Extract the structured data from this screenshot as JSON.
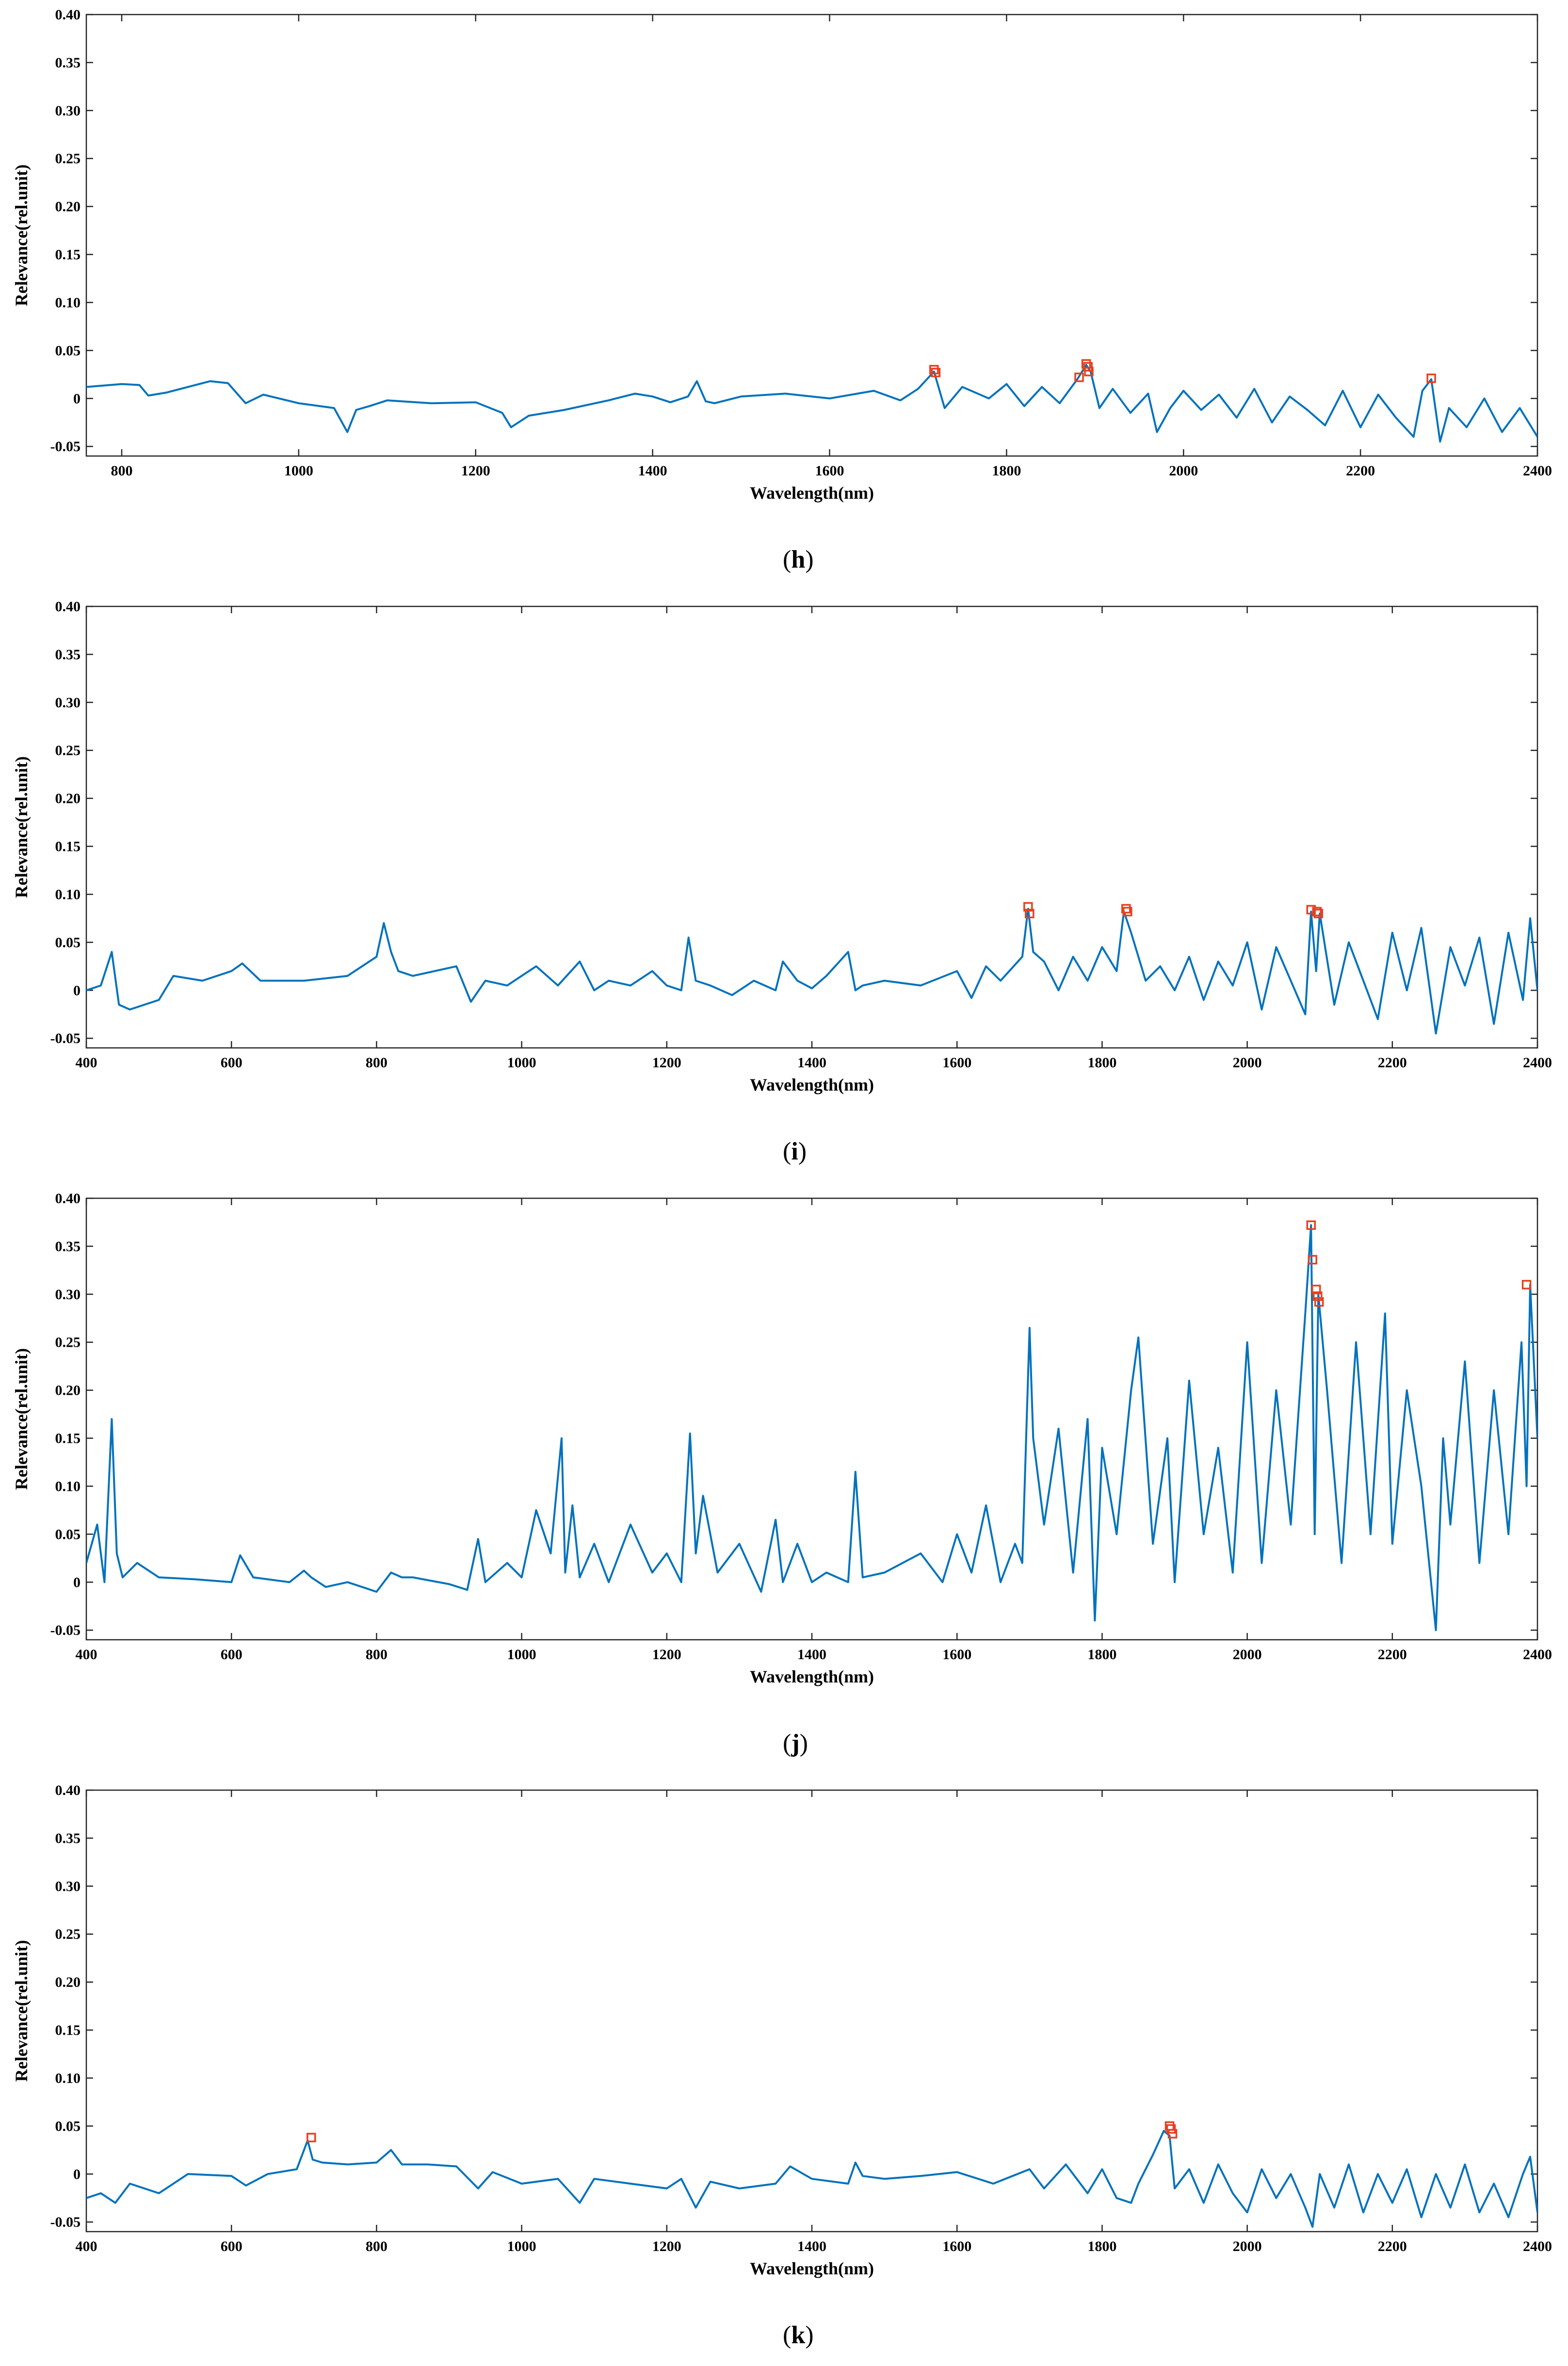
{
  "chart_data": [
    {
      "type": "line",
      "caption": "h",
      "xlabel": "Wavelength(nm)",
      "ylabel": "Relevance(rel.unit)",
      "xlim": [
        760,
        2400
      ],
      "ylim": [
        -0.06,
        0.4
      ],
      "xticks": [
        800,
        1000,
        1200,
        1400,
        1600,
        1800,
        2000,
        2200,
        2400
      ],
      "xtick_labels": [
        "800",
        "1000",
        "1200",
        "1400",
        "1600",
        "1800",
        "2000",
        "2200",
        "2400"
      ],
      "yticks": [
        0.4,
        0.35,
        0.3,
        0.25,
        0.2,
        0.15,
        0.1,
        0.05,
        0,
        -0.05
      ],
      "ytick_labels": [
        "0.40",
        "0.35",
        "0.30",
        "0.25",
        "0.20",
        "0.15",
        "0.10",
        "0.05",
        "0",
        "-0.05"
      ],
      "line_color": "#0072BD",
      "marker_color": "#E8401C",
      "series": [
        {
          "name": "relevance",
          "x": [
            760,
            800,
            820,
            830,
            850,
            900,
            920,
            940,
            960,
            1000,
            1040,
            1055,
            1065,
            1080,
            1100,
            1150,
            1200,
            1230,
            1240,
            1260,
            1300,
            1350,
            1380,
            1400,
            1420,
            1440,
            1450,
            1460,
            1470,
            1500,
            1550,
            1600,
            1650,
            1680,
            1700,
            1718,
            1730,
            1750,
            1780,
            1800,
            1820,
            1840,
            1860,
            1880,
            1890,
            1895,
            1905,
            1920,
            1940,
            1960,
            1970,
            1985,
            2000,
            2020,
            2040,
            2060,
            2080,
            2100,
            2120,
            2140,
            2160,
            2180,
            2200,
            2220,
            2240,
            2260,
            2270,
            2280,
            2290,
            2300,
            2320,
            2340,
            2360,
            2380,
            2400
          ],
          "y": [
            0.012,
            0.015,
            0.014,
            0.003,
            0.006,
            0.018,
            0.016,
            -0.005,
            0.004,
            -0.005,
            -0.01,
            -0.035,
            -0.012,
            -0.008,
            -0.002,
            -0.005,
            -0.004,
            -0.015,
            -0.03,
            -0.018,
            -0.012,
            -0.002,
            0.005,
            0.002,
            -0.004,
            0.002,
            0.018,
            -0.003,
            -0.005,
            0.002,
            0.005,
            0.0,
            0.008,
            -0.002,
            0.01,
            0.028,
            -0.01,
            0.012,
            0.0,
            0.015,
            -0.008,
            0.012,
            -0.005,
            0.02,
            0.035,
            0.028,
            -0.01,
            0.01,
            -0.015,
            0.005,
            -0.035,
            -0.01,
            0.008,
            -0.012,
            0.004,
            -0.02,
            0.01,
            -0.025,
            0.002,
            -0.012,
            -0.028,
            0.008,
            -0.03,
            0.004,
            -0.02,
            -0.04,
            0.008,
            0.02,
            -0.045,
            -0.01,
            -0.03,
            0.0,
            -0.035,
            -0.01,
            -0.04
          ]
        }
      ],
      "highlighted_points": {
        "x": [
          1718,
          1720,
          1882,
          1890,
          1892,
          1893,
          2280
        ],
        "y": [
          0.03,
          0.027,
          0.022,
          0.036,
          0.033,
          0.028,
          0.021
        ]
      }
    },
    {
      "type": "line",
      "caption": "i",
      "xlabel": "Wavelength(nm)",
      "ylabel": "Relevance(rel.unit)",
      "xlim": [
        400,
        2400
      ],
      "ylim": [
        -0.06,
        0.4
      ],
      "xticks": [
        400,
        600,
        800,
        1000,
        1200,
        1400,
        1600,
        1800,
        2000,
        2200,
        2400
      ],
      "xtick_labels": [
        "400",
        "600",
        "800",
        "1000",
        "1200",
        "1400",
        "1600",
        "1800",
        "2000",
        "2200",
        "2400"
      ],
      "yticks": [
        0.4,
        0.35,
        0.3,
        0.25,
        0.2,
        0.15,
        0.1,
        0.05,
        0,
        -0.05
      ],
      "ytick_labels": [
        "0.40",
        "0.35",
        "0.30",
        "0.25",
        "0.20",
        "0.15",
        "0.10",
        "0.05",
        "0",
        "-0.05"
      ],
      "line_color": "#0072BD",
      "marker_color": "#E8401C",
      "series": [
        {
          "name": "relevance",
          "x": [
            400,
            420,
            435,
            445,
            460,
            500,
            520,
            560,
            600,
            615,
            640,
            700,
            760,
            800,
            810,
            820,
            830,
            850,
            880,
            910,
            930,
            950,
            980,
            1000,
            1020,
            1050,
            1080,
            1100,
            1120,
            1150,
            1180,
            1200,
            1220,
            1230,
            1240,
            1260,
            1290,
            1320,
            1350,
            1360,
            1380,
            1400,
            1420,
            1450,
            1460,
            1470,
            1500,
            1550,
            1600,
            1620,
            1640,
            1660,
            1690,
            1698,
            1705,
            1720,
            1740,
            1760,
            1780,
            1800,
            1820,
            1830,
            1840,
            1860,
            1880,
            1900,
            1920,
            1940,
            1960,
            1980,
            2000,
            2020,
            2040,
            2060,
            2080,
            2088,
            2095,
            2100,
            2120,
            2140,
            2160,
            2180,
            2200,
            2220,
            2240,
            2260,
            2280,
            2300,
            2320,
            2340,
            2360,
            2380,
            2390,
            2400
          ],
          "y": [
            0.0,
            0.005,
            0.04,
            -0.015,
            -0.02,
            -0.01,
            0.015,
            0.01,
            0.02,
            0.028,
            0.01,
            0.01,
            0.015,
            0.035,
            0.07,
            0.04,
            0.02,
            0.015,
            0.02,
            0.025,
            -0.012,
            0.01,
            0.005,
            0.015,
            0.025,
            0.005,
            0.03,
            0.0,
            0.01,
            0.005,
            0.02,
            0.005,
            0.0,
            0.055,
            0.01,
            0.005,
            -0.005,
            0.01,
            0.0,
            0.03,
            0.01,
            0.002,
            0.015,
            0.04,
            0.0,
            0.005,
            0.01,
            0.005,
            0.02,
            -0.008,
            0.025,
            0.01,
            0.035,
            0.085,
            0.04,
            0.03,
            0.0,
            0.035,
            0.01,
            0.045,
            0.02,
            0.082,
            0.06,
            0.01,
            0.025,
            0.0,
            0.035,
            -0.01,
            0.03,
            0.005,
            0.05,
            -0.02,
            0.045,
            0.01,
            -0.025,
            0.082,
            0.02,
            0.08,
            -0.015,
            0.05,
            0.01,
            -0.03,
            0.06,
            0.0,
            0.065,
            -0.045,
            0.045,
            0.005,
            0.055,
            -0.035,
            0.06,
            -0.01,
            0.075,
            0.0
          ]
        }
      ],
      "highlighted_points": {
        "x": [
          1698,
          1700,
          1833,
          1835,
          2088,
          2096,
          2098
        ],
        "y": [
          0.087,
          0.08,
          0.085,
          0.082,
          0.084,
          0.082,
          0.08
        ]
      }
    },
    {
      "type": "line",
      "caption": "j",
      "xlabel": "Wavelength(nm)",
      "ylabel": "Relevance(rel.unit)",
      "xlim": [
        400,
        2400
      ],
      "ylim": [
        -0.06,
        0.4
      ],
      "xticks": [
        400,
        600,
        800,
        1000,
        1200,
        1400,
        1600,
        1800,
        2000,
        2200,
        2400
      ],
      "xtick_labels": [
        "400",
        "600",
        "800",
        "1000",
        "1200",
        "1400",
        "1600",
        "1800",
        "2000",
        "2200",
        "2400"
      ],
      "yticks": [
        0.4,
        0.35,
        0.3,
        0.25,
        0.2,
        0.15,
        0.1,
        0.05,
        0,
        -0.05
      ],
      "ytick_labels": [
        "0.40",
        "0.35",
        "0.30",
        "0.25",
        "0.20",
        "0.15",
        "0.10",
        "0.05",
        "0",
        "-0.05"
      ],
      "line_color": "#0072BD",
      "marker_color": "#E8401C",
      "series": [
        {
          "name": "relevance",
          "x": [
            400,
            415,
            425,
            435,
            442,
            450,
            470,
            500,
            550,
            600,
            612,
            630,
            680,
            700,
            710,
            730,
            760,
            800,
            820,
            835,
            850,
            900,
            925,
            940,
            950,
            980,
            1000,
            1020,
            1040,
            1055,
            1060,
            1070,
            1080,
            1100,
            1120,
            1150,
            1180,
            1200,
            1220,
            1232,
            1240,
            1250,
            1270,
            1300,
            1330,
            1350,
            1360,
            1380,
            1400,
            1420,
            1450,
            1460,
            1470,
            1500,
            1550,
            1580,
            1600,
            1620,
            1640,
            1660,
            1680,
            1690,
            1700,
            1705,
            1720,
            1740,
            1760,
            1780,
            1790,
            1800,
            1820,
            1840,
            1850,
            1870,
            1890,
            1900,
            1920,
            1940,
            1960,
            1980,
            2000,
            2020,
            2040,
            2060,
            2080,
            2088,
            2093,
            2098,
            2110,
            2130,
            2150,
            2170,
            2190,
            2200,
            2220,
            2240,
            2260,
            2270,
            2280,
            2300,
            2320,
            2340,
            2360,
            2378,
            2385,
            2390,
            2400
          ],
          "y": [
            0.02,
            0.06,
            0.0,
            0.17,
            0.03,
            0.005,
            0.02,
            0.005,
            0.003,
            0.0,
            0.028,
            0.005,
            0.0,
            0.012,
            0.005,
            -0.005,
            0.0,
            -0.01,
            0.01,
            0.005,
            0.005,
            -0.002,
            -0.008,
            0.045,
            0.0,
            0.02,
            0.005,
            0.075,
            0.03,
            0.15,
            0.01,
            0.08,
            0.005,
            0.04,
            0.0,
            0.06,
            0.01,
            0.03,
            0.0,
            0.155,
            0.03,
            0.09,
            0.01,
            0.04,
            -0.01,
            0.065,
            0.0,
            0.04,
            0.0,
            0.01,
            0.0,
            0.115,
            0.005,
            0.01,
            0.03,
            0.0,
            0.05,
            0.01,
            0.08,
            0.0,
            0.04,
            0.02,
            0.265,
            0.15,
            0.06,
            0.16,
            0.01,
            0.17,
            -0.04,
            0.14,
            0.05,
            0.2,
            0.255,
            0.04,
            0.15,
            0.0,
            0.21,
            0.05,
            0.14,
            0.01,
            0.25,
            0.02,
            0.2,
            0.06,
            0.28,
            0.372,
            0.05,
            0.3,
            0.2,
            0.02,
            0.25,
            0.05,
            0.28,
            0.04,
            0.2,
            0.1,
            -0.05,
            0.15,
            0.06,
            0.23,
            0.02,
            0.2,
            0.05,
            0.25,
            0.1,
            0.31,
            0.15
          ]
        }
      ],
      "highlighted_points": {
        "x": [
          2088,
          2090,
          2095,
          2097,
          2099,
          2385
        ],
        "y": [
          0.372,
          0.336,
          0.305,
          0.298,
          0.292,
          0.31
        ]
      }
    },
    {
      "type": "line",
      "caption": "k",
      "xlabel": "Wavelength(nm)",
      "ylabel": "Relevance(rel.unit)",
      "xlim": [
        400,
        2400
      ],
      "ylim": [
        -0.06,
        0.4
      ],
      "xticks": [
        400,
        600,
        800,
        1000,
        1200,
        1400,
        1600,
        1800,
        2000,
        2200,
        2400
      ],
      "xtick_labels": [
        "400",
        "600",
        "800",
        "1000",
        "1200",
        "1400",
        "1600",
        "1800",
        "2000",
        "2200",
        "2400"
      ],
      "yticks": [
        0.4,
        0.35,
        0.3,
        0.25,
        0.2,
        0.15,
        0.1,
        0.05,
        0,
        -0.05
      ],
      "ytick_labels": [
        "0.40",
        "0.35",
        "0.30",
        "0.25",
        "0.20",
        "0.15",
        "0.10",
        "0.05",
        "0",
        "-0.05"
      ],
      "line_color": "#0072BD",
      "marker_color": "#E8401C",
      "series": [
        {
          "name": "relevance",
          "x": [
            400,
            420,
            440,
            460,
            500,
            540,
            600,
            620,
            650,
            690,
            705,
            712,
            725,
            760,
            800,
            820,
            835,
            870,
            910,
            940,
            960,
            1000,
            1050,
            1080,
            1100,
            1150,
            1200,
            1220,
            1240,
            1260,
            1300,
            1350,
            1370,
            1400,
            1450,
            1460,
            1470,
            1500,
            1550,
            1600,
            1650,
            1700,
            1720,
            1750,
            1780,
            1800,
            1820,
            1840,
            1850,
            1870,
            1885,
            1893,
            1900,
            1920,
            1940,
            1960,
            1980,
            2000,
            2020,
            2040,
            2060,
            2080,
            2090,
            2100,
            2120,
            2140,
            2160,
            2180,
            2200,
            2220,
            2240,
            2260,
            2280,
            2300,
            2320,
            2340,
            2360,
            2380,
            2390,
            2400
          ],
          "y": [
            -0.025,
            -0.02,
            -0.03,
            -0.01,
            -0.02,
            0.0,
            -0.002,
            -0.012,
            0.0,
            0.005,
            0.035,
            0.015,
            0.012,
            0.01,
            0.012,
            0.025,
            0.01,
            0.01,
            0.008,
            -0.015,
            0.002,
            -0.01,
            -0.005,
            -0.03,
            -0.005,
            -0.01,
            -0.015,
            -0.005,
            -0.035,
            -0.008,
            -0.015,
            -0.01,
            0.008,
            -0.005,
            -0.01,
            0.012,
            -0.002,
            -0.005,
            -0.002,
            0.002,
            -0.01,
            0.005,
            -0.015,
            0.01,
            -0.02,
            0.005,
            -0.025,
            -0.03,
            -0.01,
            0.02,
            0.045,
            0.04,
            -0.015,
            0.005,
            -0.03,
            0.01,
            -0.02,
            -0.04,
            0.005,
            -0.025,
            0.0,
            -0.035,
            -0.055,
            0.0,
            -0.035,
            0.01,
            -0.04,
            0.0,
            -0.03,
            0.005,
            -0.045,
            0.0,
            -0.035,
            0.01,
            -0.04,
            -0.01,
            -0.045,
            0.0,
            0.018,
            -0.04
          ]
        }
      ],
      "highlighted_points": {
        "x": [
          710,
          1893,
          1895,
          1897
        ],
        "y": [
          0.038,
          0.05,
          0.047,
          0.042
        ]
      }
    }
  ]
}
